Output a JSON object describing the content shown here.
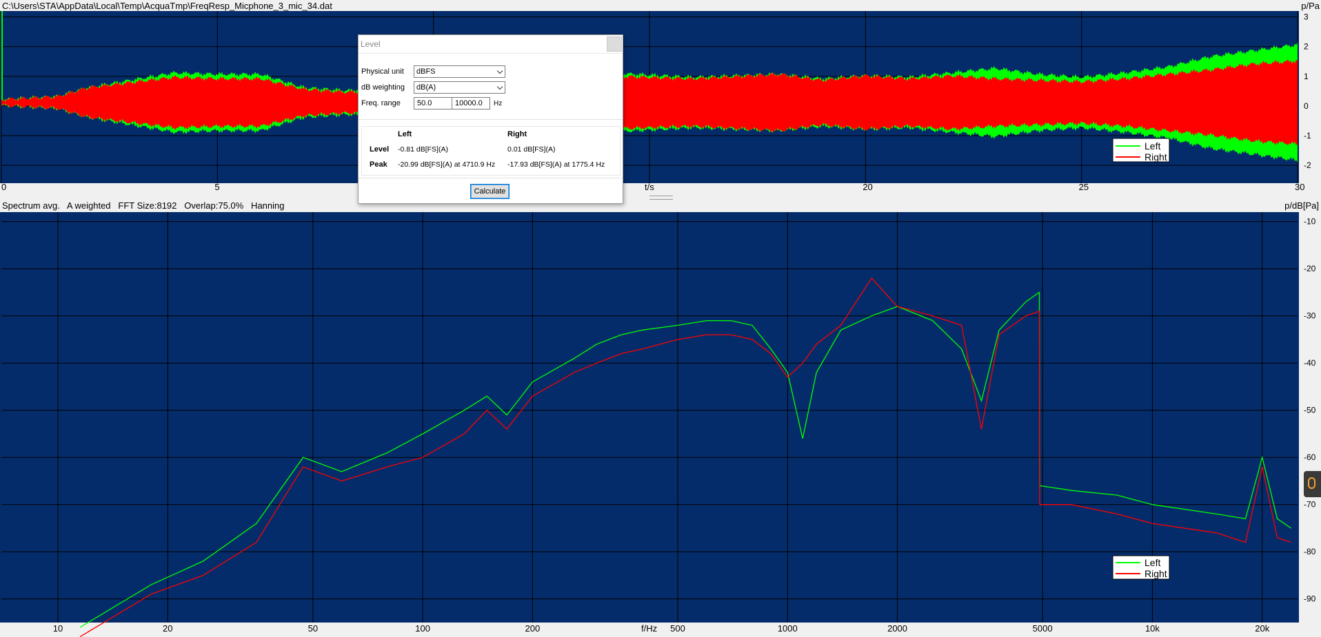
{
  "window": {
    "file_path": "C:\\Users\\STA\\AppData\\Local\\Temp\\AcquaTmp\\FreqResp_Micphone_3_mic_34.dat"
  },
  "time_plot": {
    "y_unit": "p/Pa",
    "x_unit": "t/s",
    "x_ticks": [
      "0",
      "5",
      "20",
      "25",
      "30"
    ],
    "y_ticks": [
      "3",
      "2",
      "1",
      "0",
      "-1",
      "-2"
    ],
    "legend": [
      "Left",
      "Right"
    ]
  },
  "spectrum_plot": {
    "header": "Spectrum avg.   A weighted   FFT Size:8192   Overlap:75.0%   Hanning",
    "y_unit": "p/dB[Pa]",
    "x_unit": "f/Hz",
    "x_ticks": [
      "10",
      "20",
      "50",
      "100",
      "200",
      "500",
      "1000",
      "2000",
      "5000",
      "10k",
      "20k"
    ],
    "y_ticks": [
      "-10",
      "-20",
      "-30",
      "-40",
      "-50",
      "-60",
      "-70",
      "-80",
      "-90"
    ],
    "legend": [
      "Left",
      "Right"
    ]
  },
  "level_dialog": {
    "title": "Level",
    "physical_unit_label": "Physical unit",
    "physical_unit_value": "dBFS",
    "weighting_label": "dB weighting",
    "weighting_value": "dB(A)",
    "freq_range_label": "Freq. range",
    "freq_from": "50.0",
    "freq_to": "10000.0",
    "freq_unit": "Hz",
    "col_left": "Left",
    "col_right": "Right",
    "row_level": "Level",
    "row_peak": "Peak",
    "level_left": "-0.81 dB[FS](A)",
    "level_right": "0.01 dB[FS](A)",
    "peak_left": "-20.99 dB[FS](A) at 4710.9 Hz",
    "peak_right": "-17.93 dB[FS](A) at 1775.4 Hz",
    "calculate_label": "Calculate"
  },
  "colors": {
    "plot_bg": "#052c6a",
    "left": "#00ff00",
    "right": "#ff0000",
    "grid": "#000000"
  },
  "chart_data": [
    {
      "type": "area",
      "title": "",
      "xlabel": "t/s",
      "ylabel": "p/Pa",
      "xlim": [
        0,
        30
      ],
      "ylim": [
        -2.6,
        3.2
      ],
      "series": [
        {
          "name": "Left",
          "envelope_t": [
            0,
            1.3,
            2,
            4,
            5,
            6,
            7,
            8,
            14,
            16,
            18,
            19,
            20,
            21,
            22,
            23,
            24,
            25,
            26,
            27,
            28,
            29,
            30
          ],
          "envelope_amp": [
            0.1,
            0.2,
            0.5,
            1.0,
            0.95,
            0.95,
            0.5,
            0.4,
            1.0,
            0.85,
            0.95,
            0.8,
            0.9,
            0.85,
            1.0,
            1.15,
            0.95,
            0.85,
            1.0,
            1.2,
            1.55,
            1.75,
            1.95
          ]
        },
        {
          "name": "Right",
          "envelope_t": [
            0,
            1.3,
            2,
            4,
            5,
            6,
            7,
            8,
            14,
            16,
            18,
            19,
            20,
            21,
            22,
            23,
            24,
            25,
            26,
            27,
            28,
            29,
            30
          ],
          "envelope_amp": [
            0.1,
            0.2,
            0.5,
            0.85,
            0.8,
            0.8,
            0.45,
            0.35,
            0.9,
            0.8,
            0.95,
            0.75,
            0.9,
            0.8,
            0.9,
            0.8,
            0.75,
            0.7,
            0.8,
            0.95,
            1.1,
            1.3,
            1.4
          ]
        }
      ]
    },
    {
      "type": "line",
      "title": "Spectrum avg.",
      "xlabel": "f/Hz",
      "ylabel": "p/dB[Pa]",
      "xscale": "log",
      "xlim": [
        7,
        25000
      ],
      "ylim": [
        -95,
        -8
      ],
      "series": [
        {
          "name": "Left",
          "x": [
            11.5,
            18,
            25,
            35,
            47,
            60,
            80,
            100,
            130,
            150,
            170,
            200,
            260,
            300,
            350,
            400,
            500,
            600,
            700,
            800,
            900,
            1000,
            1100,
            1200,
            1400,
            1700,
            2000,
            2500,
            3000,
            3400,
            3800,
            4500,
            4900,
            4910,
            6000,
            8000,
            10000,
            15000,
            18000,
            20000,
            22000,
            24000
          ],
          "y": [
            -96,
            -87,
            -82,
            -74,
            -60,
            -63,
            -59,
            -55,
            -50,
            -47,
            -51,
            -44,
            -39,
            -36,
            -34,
            -33,
            -32,
            -31,
            -31,
            -32,
            -37,
            -42,
            -56,
            -42,
            -33,
            -30,
            -28,
            -31,
            -37,
            -48,
            -33,
            -27,
            -25,
            -66,
            -67,
            -68,
            -70,
            -72,
            -73,
            -60,
            -73,
            -75
          ]
        },
        {
          "name": "Right",
          "x": [
            11.5,
            18,
            25,
            35,
            47,
            60,
            80,
            100,
            130,
            150,
            170,
            200,
            260,
            300,
            350,
            400,
            500,
            600,
            700,
            800,
            900,
            1000,
            1100,
            1200,
            1400,
            1700,
            2000,
            2500,
            3000,
            3400,
            3800,
            4500,
            4900,
            4910,
            6000,
            8000,
            10000,
            15000,
            18000,
            20000,
            22000,
            24000
          ],
          "y": [
            -98,
            -89,
            -85,
            -78,
            -62,
            -65,
            -62,
            -60,
            -55,
            -50,
            -54,
            -47,
            -42,
            -40,
            -38,
            -37,
            -35,
            -34,
            -34,
            -35,
            -38,
            -43,
            -40,
            -36,
            -32,
            -22,
            -28,
            -30,
            -32,
            -54,
            -34,
            -30,
            -29,
            -70,
            -70,
            -72,
            -74,
            -76,
            -78,
            -62,
            -77,
            -78
          ]
        }
      ]
    }
  ]
}
